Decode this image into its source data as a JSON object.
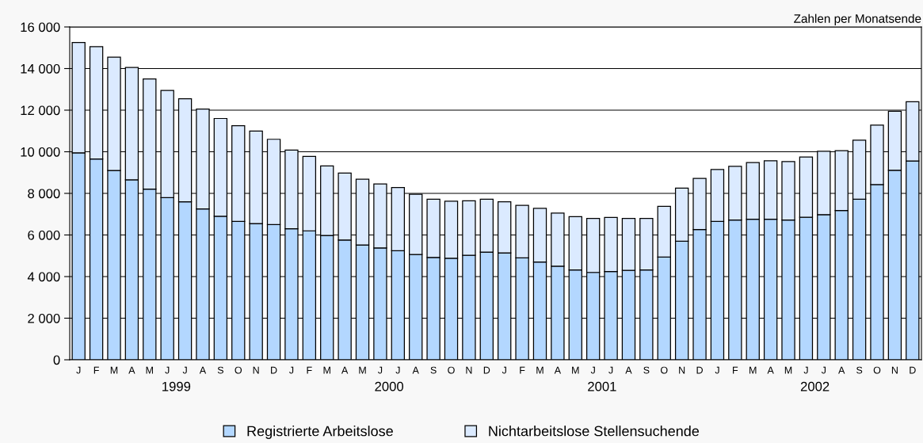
{
  "chart_data": {
    "type": "bar",
    "stacked": true,
    "categories": [
      "J",
      "F",
      "M",
      "A",
      "M",
      "J",
      "J",
      "A",
      "S",
      "O",
      "N",
      "D",
      "J",
      "F",
      "M",
      "A",
      "M",
      "J",
      "J",
      "A",
      "S",
      "O",
      "N",
      "D",
      "J",
      "F",
      "M",
      "A",
      "M",
      "J",
      "J",
      "A",
      "S",
      "O",
      "N",
      "D",
      "J",
      "F",
      "M",
      "A",
      "M",
      "J",
      "J",
      "A",
      "S",
      "O",
      "N",
      "D"
    ],
    "series": [
      {
        "name": "Registrierte Arbeitslose",
        "color": "#b3d7ff",
        "values": [
          9950,
          9650,
          9100,
          8650,
          8200,
          7800,
          7600,
          7250,
          6900,
          6650,
          6550,
          6500,
          6300,
          6200,
          5980,
          5760,
          5520,
          5380,
          5240,
          5060,
          4920,
          4880,
          5020,
          5180,
          5140,
          4900,
          4700,
          4500,
          4320,
          4200,
          4240,
          4300,
          4320,
          4940,
          5700,
          6260,
          6650,
          6720,
          6760,
          6760,
          6720,
          6850,
          6980,
          7180,
          7720,
          8420,
          9110,
          9560
        ]
      },
      {
        "name": "Nichtarbeitslose Stellensuchende",
        "color": "#dbeaff",
        "values": [
          5300,
          5400,
          5450,
          5400,
          5300,
          5150,
          4950,
          4800,
          4700,
          4600,
          4450,
          4100,
          3780,
          3580,
          3340,
          3220,
          3160,
          3070,
          3040,
          2900,
          2800,
          2740,
          2620,
          2540,
          2460,
          2520,
          2580,
          2550,
          2560,
          2600,
          2600,
          2500,
          2480,
          2440,
          2550,
          2460,
          2500,
          2580,
          2720,
          2810,
          2810,
          2900,
          3040,
          2870,
          2840,
          2860,
          2840,
          2840
        ]
      }
    ],
    "ylim": [
      0,
      16000
    ],
    "yticks": [
      0,
      {
        "value": 2000,
        "label": "2 000"
      },
      {
        "value": 4000,
        "label": "4 000"
      },
      {
        "value": 6000,
        "label": "6 000"
      },
      {
        "value": 8000,
        "label": "8 000"
      },
      {
        "value": 10000,
        "label": "10 000"
      },
      {
        "value": 12000,
        "label": "12 000"
      },
      {
        "value": 14000,
        "label": "14 000"
      },
      {
        "value": 16000,
        "label": "16 000"
      }
    ],
    "grid": "y",
    "legend": "bottom",
    "annotations": [
      "Zahlen per Monatsende",
      "1999",
      "2000",
      "2001",
      "2002"
    ]
  }
}
